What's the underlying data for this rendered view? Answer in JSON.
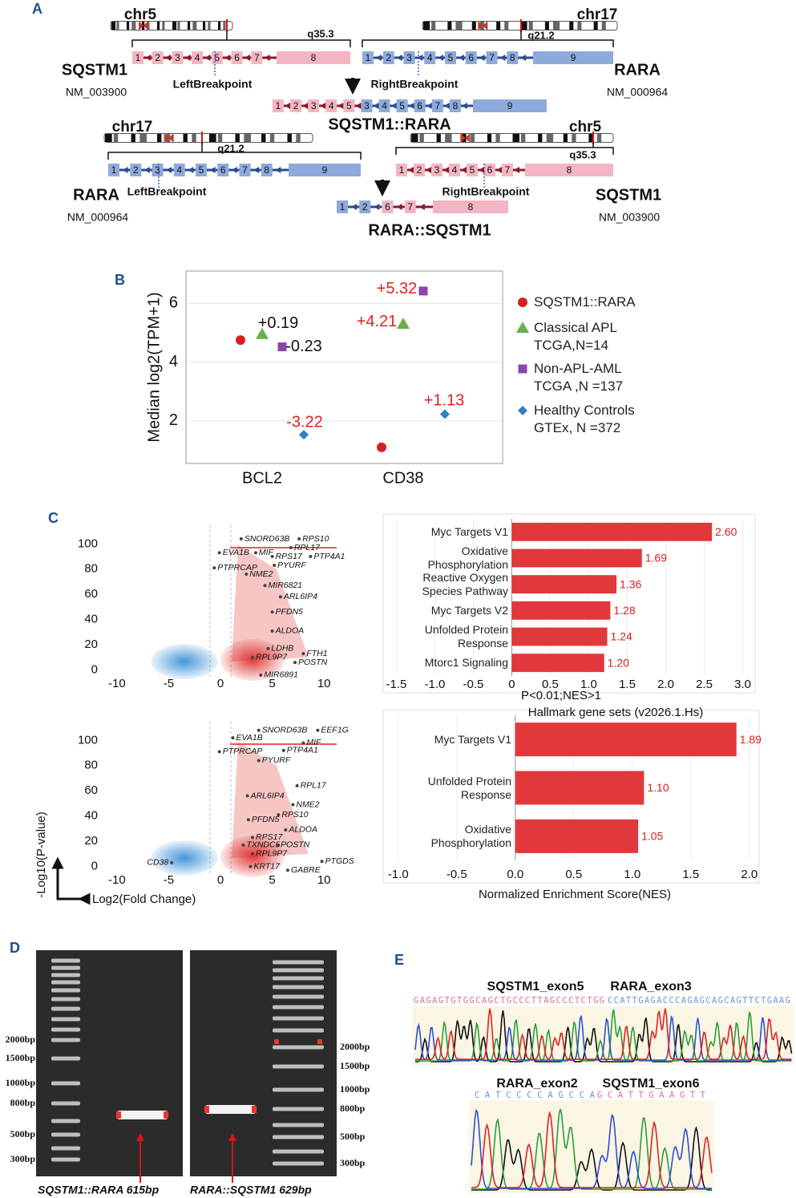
{
  "panel_labels": {
    "a": "A",
    "b": "B",
    "c": "C",
    "d": "D",
    "e": "E"
  },
  "panel_a": {
    "top": {
      "sqstm1": {
        "chr": "chr5",
        "band": "q35.3",
        "gene": "SQSTM1",
        "accession": "NM_003900",
        "exons": [
          "1",
          "2",
          "3",
          "4",
          "5",
          "6",
          "7",
          "8"
        ],
        "breakpoint": "LeftBreakpoint"
      },
      "rara": {
        "chr": "chr17",
        "band": "q21.2",
        "gene": "RARA",
        "accession": "NM_000964",
        "exons": [
          "1",
          "2",
          "3",
          "4",
          "5",
          "6",
          "7",
          "8",
          "9"
        ],
        "breakpoint": "RightBreakpoint"
      },
      "fusion": {
        "name": "SQSTM1::RARA",
        "exons_5p": [
          "1",
          "2",
          "3",
          "4",
          "5"
        ],
        "exons_3p": [
          "3",
          "4",
          "5",
          "6",
          "7",
          "8",
          "9"
        ]
      }
    },
    "bottom": {
      "rara": {
        "chr": "chr17",
        "band": "q21.2",
        "gene": "RARA",
        "accession": "NM_000964",
        "exons": [
          "1",
          "2",
          "3",
          "4",
          "5",
          "6",
          "7",
          "8",
          "9"
        ],
        "breakpoint": "LeftBreakpoint"
      },
      "sqstm1": {
        "chr": "chr5",
        "band": "q35.3",
        "gene": "SQSTM1",
        "accession": "NM_003900",
        "exons": [
          "1",
          "2",
          "3",
          "4",
          "5",
          "6",
          "7",
          "8"
        ],
        "breakpoint": "RightBreakpoint"
      },
      "fusion": {
        "name": "RARA::SQSTM1",
        "exons_5p": [
          "1",
          "2"
        ],
        "exons_3p": [
          "6",
          "7",
          "8"
        ]
      }
    }
  },
  "chart_data": [
    {
      "type": "scatter",
      "y_axis_label": "Median log2(TPM+1)",
      "categories": [
        "BCL2",
        "CD38"
      ],
      "ylim": [
        0.55,
        7.1
      ],
      "yticks": [
        2,
        4,
        6
      ],
      "grid": true,
      "series": [
        {
          "name": "SQSTM1::RARA",
          "color": "#d62020",
          "marker": "circle",
          "values": [
            4.75,
            1.1
          ]
        },
        {
          "name": "Classical APL\nTCGA,N=14",
          "color": "#6ab04c",
          "marker": "triangle",
          "values": [
            4.95,
            5.3
          ],
          "annotations": [
            "+0.19",
            "+4.21"
          ],
          "annotation_colors": [
            "#111111",
            "#e02020"
          ]
        },
        {
          "name": "Non-APL-AML\nTCGA ,N =137",
          "color": "#8e44ad",
          "marker": "square",
          "values": [
            4.52,
            6.42
          ],
          "annotations": [
            "-0.23",
            "+5.32"
          ],
          "annotation_colors": [
            "#111111",
            "#e02020"
          ]
        },
        {
          "name": "Healthy Controls\nGTEx, N =372",
          "color": "#2f7fc8",
          "marker": "diamond",
          "values": [
            1.53,
            2.23
          ],
          "annotations": [
            "-3.22",
            "+1.13"
          ],
          "annotation_colors": [
            "#e02020",
            "#e02020"
          ]
        }
      ]
    },
    {
      "type": "bar",
      "orientation": "horizontal",
      "note": "P<0.01;NES>1",
      "categories": [
        "Myc Targets V1",
        "Oxidative\nPhosphorylation",
        "Reactive Oxygen\nSpecies Pathway",
        "Myc Targets V2",
        "Unfolded Protein\nResponse",
        "Mtorc1 Signaling"
      ],
      "values": [
        2.6,
        1.69,
        1.36,
        1.28,
        1.24,
        1.2
      ],
      "value_labels": [
        "2.60",
        "1.69",
        "1.36",
        "1.28",
        "1.24",
        "1.20"
      ],
      "color": "#e0383b",
      "xlim": [
        -1.65,
        3.14
      ],
      "xticks": [
        -1.5,
        {
          "value": -1,
          "label": "-1.0"
        },
        -0.5,
        0,
        0.5,
        {
          "value": 1,
          "label": "1.0"
        },
        1.5,
        {
          "value": 2,
          "label": "2.0"
        },
        2.5,
        {
          "value": 3,
          "label": "3.0"
        }
      ],
      "grid": true
    },
    {
      "type": "bar",
      "orientation": "horizontal",
      "title": "Hallmark gene sets (v2026.1.Hs)",
      "x_axis_label": "Normalized Enrichment Score(NES)",
      "categories": [
        "Myc Targets V1",
        "Unfolded Protein\nResponse",
        "Oxidative\nPhosphorylation"
      ],
      "values": [
        1.89,
        1.1,
        1.05
      ],
      "value_labels": [
        "1.89",
        "1.10",
        "1.05"
      ],
      "color": "#e0383b",
      "xlim": [
        -1.115,
        2.07
      ],
      "xticks": [
        {
          "value": -1,
          "label": "-1.0"
        },
        -0.5,
        {
          "value": 0,
          "label": "0.0"
        },
        0.5,
        {
          "value": 1,
          "label": "1.0"
        },
        1.5,
        {
          "value": 2,
          "label": "2.0"
        }
      ],
      "grid": true
    },
    {
      "type": "volcano",
      "xlim": [
        -12,
        12
      ],
      "ylim": [
        -6,
        118
      ],
      "xticks": [
        -10,
        -5,
        0,
        5,
        10
      ],
      "yticks": [
        0,
        20,
        40,
        60,
        80,
        100
      ],
      "series": [
        {
          "color": "#c8282b",
          "x": [
            2.0,
            7.6,
            6.8,
            -0.1,
            3.4,
            5.0,
            8.7,
            5.2,
            -0.6,
            2.5,
            4.3,
            5.8,
            5.0,
            5.0,
            4.6,
            8.0,
            3.1,
            7.2,
            3.9
          ],
          "values": [
            104,
            104,
            97,
            93,
            93,
            90,
            90,
            83,
            81,
            76,
            67,
            58,
            46,
            31,
            17,
            13,
            10,
            6,
            -4
          ],
          "labels": [
            "SNORD63B",
            "RPS10",
            "RPL17",
            "EVA1B",
            "MIF",
            "RPS17",
            "PTP4A1",
            "PYURF",
            "PTPRCAP",
            "NME2",
            "MIR6821",
            "ARL6IP4",
            "PFDN5",
            "ALDOA",
            "LDHB",
            "FTH1",
            "RPL9P7",
            "POSTN",
            "MIR6891"
          ]
        }
      ]
    },
    {
      "type": "volcano",
      "y_axis_label": "-Log10(P-value)",
      "x_axis_label": "Log2(Fold Change)",
      "xlim": [
        -12,
        12
      ],
      "ylim": [
        -6,
        118
      ],
      "xticks": [
        -10,
        -5,
        0,
        5,
        10
      ],
      "yticks": [
        0,
        20,
        40,
        60,
        80,
        100
      ],
      "series": [
        {
          "color": "#c8282b",
          "x": [
            3.7,
            9.4,
            1.2,
            8.0,
            6.1,
            -0.1,
            3.7,
            7.4,
            2.6,
            7.0,
            5.6,
            2.7,
            6.3,
            3.1,
            2.2,
            5.5,
            3.1,
            9.8,
            2.9,
            6.5
          ],
          "values": [
            108,
            108,
            102,
            98,
            92,
            91,
            84,
            64,
            56,
            49,
            41,
            37,
            29,
            23,
            17,
            17,
            10,
            4,
            0,
            -3
          ],
          "labels": [
            "SNORD63B",
            "EEF1G",
            "EVA1B",
            "MIF",
            "PTP4A1",
            "PTPRCAP",
            "PYURF",
            "RPL17",
            "ARL6IP4",
            "NME2",
            "RPS10",
            "PFDN5",
            "ALDOA",
            "RPS17",
            "TXNDC5",
            "POSTN",
            "RPL9P7",
            "PTGDS",
            "KRT17",
            "GABRE"
          ]
        },
        {
          "color": "#2f7fc8",
          "x": [
            -4.7
          ],
          "values": [
            3
          ],
          "labels": [
            "CD38"
          ]
        }
      ]
    }
  ],
  "panel_d": {
    "left_ladder": [
      "2000bp",
      "1500bp",
      "1000bp",
      "800bp",
      "500bp",
      "300bp"
    ],
    "right_ladder": [
      "2000bp",
      "1500bp",
      "1000bp",
      "800bp",
      "500bp",
      "300bp"
    ],
    "captions": [
      "SQSTM1::RARA 615bp",
      "RARA::SQSTM1 629bp"
    ]
  },
  "panel_e": {
    "trace1": {
      "labels": [
        "SQSTM1_exon5",
        "RARA_exon3"
      ],
      "seq": [
        "GAGAGTGTGGCAGCTGCCCTTAGCCCTCTGG",
        "CCATTGAGACCCAGAGCAGCAGTTCTGAAG"
      ]
    },
    "trace2": {
      "labels": [
        "RARA_exon2",
        "SQSTM1_exon6"
      ],
      "seq": [
        "CATCCCCAGCCA",
        "GCATTGAAGTT"
      ]
    }
  }
}
